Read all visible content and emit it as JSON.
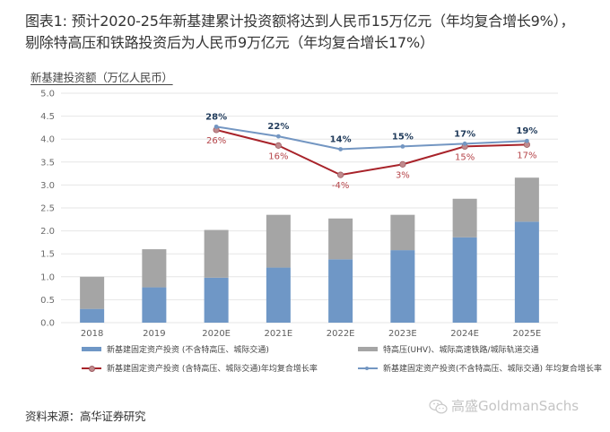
{
  "title": {
    "line1": "图表1: 预计2020-25年新基建累计投资额将达到人民币15万亿元（年均复合增长9%），",
    "line2": "剔除特高压和铁路投资后为人民币9万亿元（年均复合增长17%）"
  },
  "source": "资料来源：高华证券研究",
  "watermark": {
    "icon": "wechat-icon",
    "text": "高盛GoldmanSachs"
  },
  "colors": {
    "bar_core": "#6f97c6",
    "bar_uhv": "#a5a5a5",
    "line_red": "#a8232a",
    "line_blue": "#7396c2",
    "label_blue": "#1f3a5a",
    "label_red": "#b54449",
    "grid": "#e6e6e6"
  },
  "chart_data": {
    "type": "bar",
    "stacked": true,
    "ylabel": "新基建投资额（万亿人民币）",
    "xlabel": "",
    "ylim": [
      0,
      5
    ],
    "yticks": [
      "0.0",
      "0.5",
      "1.0",
      "1.5",
      "2.0",
      "2.5",
      "3.0",
      "3.5",
      "4.0",
      "4.5",
      "5.0"
    ],
    "grid": true,
    "legend_position": "bottom",
    "categories": [
      "2018",
      "2019",
      "2020E",
      "2021E",
      "2022E",
      "2023E",
      "2024E",
      "2025E"
    ],
    "series": [
      {
        "name": "新基建固定资产投资 (不含特高压、城际交通)",
        "kind": "bar",
        "values": [
          0.3,
          0.77,
          0.98,
          1.2,
          1.38,
          1.58,
          1.86,
          2.2
        ]
      },
      {
        "name": "特高压(UHV)、城际高速铁路/城际轨道交通",
        "kind": "bar",
        "values": [
          0.7,
          0.83,
          1.04,
          1.15,
          0.89,
          0.77,
          0.84,
          0.96
        ]
      },
      {
        "name": "新基建固定资产投资 (含特高压、城际交通)年均复合增长率",
        "kind": "line",
        "color": "red",
        "x_start": "2020E",
        "positions": [
          4.2,
          3.86,
          3.22,
          3.45,
          3.84,
          3.88
        ],
        "labels": [
          "26%",
          "16%",
          "-4%",
          "3%",
          "15%",
          "17%"
        ]
      },
      {
        "name": "新基建固定资产投资(不含特高压、城际交通) 年均复合增长率",
        "kind": "line",
        "color": "blue",
        "x_start": "2020E",
        "positions": [
          4.27,
          4.06,
          3.78,
          3.84,
          3.9,
          3.96
        ],
        "labels": [
          "28%",
          "22%",
          "14%",
          "15%",
          "17%",
          "19%"
        ]
      }
    ]
  }
}
